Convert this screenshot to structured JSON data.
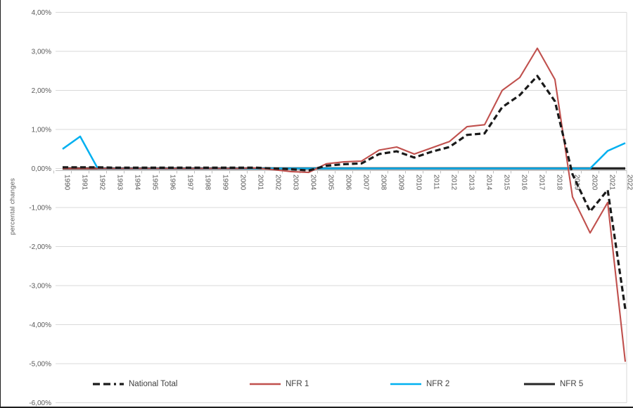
{
  "chart_data": {
    "type": "line",
    "title": "",
    "ylabel": "percental changes",
    "xlabel": "",
    "grid": true,
    "legend_position": "bottom",
    "ylim": [
      -6,
      4
    ],
    "y_tick_values": [
      4,
      3,
      2,
      1,
      0,
      -1,
      -2,
      -3,
      -4,
      -5,
      -6
    ],
    "y_tick_labels": [
      "4,00%",
      "3,00%",
      "2,00%",
      "1,00%",
      "0,00%",
      "-1,00%",
      "-2,00%",
      "-3,00%",
      "-4,00%",
      "-5,00%",
      "-6,00%"
    ],
    "x": [
      "1990",
      "1991",
      "1992",
      "1993",
      "1994",
      "1995",
      "1996",
      "1997",
      "1998",
      "1999",
      "2000",
      "2001",
      "2002",
      "2003",
      "2004",
      "2005",
      "2006",
      "2007",
      "2008",
      "2009",
      "2010",
      "2011",
      "2012",
      "2013",
      "2014",
      "2015",
      "2016",
      "2017",
      "2018",
      "2019",
      "2020",
      "2021",
      "2022"
    ],
    "series": [
      {
        "name": "National Total",
        "color": "#1a1a1a",
        "width": 3.2,
        "dash": "8 4.5",
        "values": [
          0.03,
          0.03,
          0.03,
          0.02,
          0.02,
          0.02,
          0.02,
          0.02,
          0.02,
          0.02,
          0.02,
          0.02,
          0.0,
          -0.02,
          -0.05,
          0.07,
          0.11,
          0.13,
          0.37,
          0.44,
          0.28,
          0.43,
          0.55,
          0.86,
          0.9,
          1.57,
          1.88,
          2.37,
          1.72,
          -0.15,
          -1.1,
          -0.55,
          -3.6
        ]
      },
      {
        "name": "NFR 1",
        "color": "#c0504d",
        "width": 2.1,
        "dash": null,
        "values": [
          0.0,
          0.0,
          0.0,
          0.0,
          0.0,
          0.0,
          0.0,
          0.0,
          0.0,
          0.0,
          0.0,
          0.01,
          -0.03,
          -0.08,
          -0.1,
          0.12,
          0.17,
          0.19,
          0.47,
          0.55,
          0.37,
          0.53,
          0.69,
          1.07,
          1.12,
          2.0,
          2.33,
          3.08,
          2.28,
          -0.73,
          -1.65,
          -0.87,
          -4.95
        ]
      },
      {
        "name": "NFR 2",
        "color": "#00b0f0",
        "width": 2.5,
        "dash": null,
        "values": [
          0.5,
          0.82,
          0.0,
          0.0,
          0.0,
          0.0,
          0.0,
          0.0,
          0.0,
          0.0,
          0.0,
          0.0,
          0.0,
          0.0,
          0.0,
          0.0,
          0.0,
          0.0,
          0.0,
          0.0,
          0.0,
          0.0,
          0.0,
          0.0,
          0.0,
          0.0,
          0.0,
          0.0,
          0.0,
          0.0,
          0.0,
          0.45,
          0.65
        ]
      },
      {
        "name": "NFR 5",
        "color": "#262626",
        "width": 3.6,
        "dash": null,
        "values": [
          0.0,
          0.0,
          0.0,
          0.0,
          0.0,
          0.0,
          0.0,
          0.0,
          0.0,
          0.0,
          0.0,
          0.0,
          0.0,
          0.0,
          0.0,
          0.0,
          0.0,
          0.0,
          0.0,
          0.0,
          0.0,
          0.0,
          0.0,
          0.0,
          0.0,
          0.0,
          0.0,
          0.0,
          0.0,
          0.0,
          0.0,
          0.0,
          0.0
        ]
      }
    ],
    "colors": {
      "gridline": "#d9d9d9",
      "axis_line": "#bfbfbf",
      "tick_text": "#595959",
      "legend_text": "#404040"
    }
  }
}
